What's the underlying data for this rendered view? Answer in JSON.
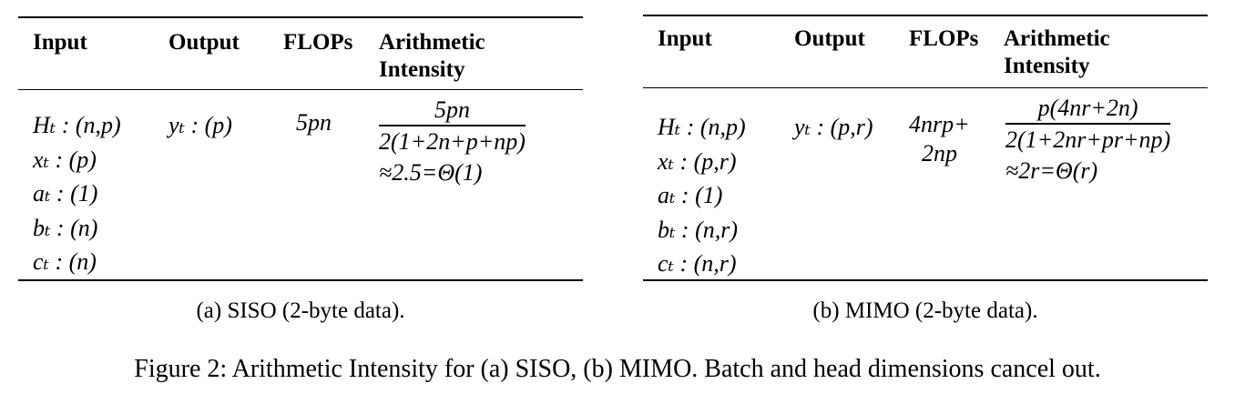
{
  "table_a": {
    "headers": {
      "input": "Input",
      "output": "Output",
      "flops": "FLOPs",
      "ai_line1": "Arithmetic",
      "ai_line2": "Intensity"
    },
    "inputs": [
      "Hₜ : (n,p)",
      "xₜ : (p)",
      "aₜ : (1)",
      "bₜ : (n)",
      "cₜ : (n)"
    ],
    "output": "yₜ : (p)",
    "flops": "5pn",
    "ai_numerator": "5pn",
    "ai_denominator": "2(1+2n+p+np)",
    "ai_approx": "≈2.5=Θ(1)",
    "caption": "(a) SISO (2-byte data)."
  },
  "table_b": {
    "headers": {
      "input": "Input",
      "output": "Output",
      "flops": "FLOPs",
      "ai_line1": "Arithmetic",
      "ai_line2": "Intensity"
    },
    "inputs": [
      "Hₜ : (n,p)",
      "xₜ : (p,r)",
      "aₜ : (1)",
      "bₜ : (n,r)",
      "cₜ : (n,r)"
    ],
    "output": "yₜ : (p,r)",
    "flops_line1": "4nrp+",
    "flops_line2": "2np",
    "ai_numerator": "p(4nr+2n)",
    "ai_denominator": "2(1+2nr+pr+np)",
    "ai_approx": "≈2r=Θ(r)",
    "caption": "(b) MIMO (2-byte data)."
  },
  "figure_caption": "Figure 2: Arithmetic Intensity for (a) SISO, (b) MIMO. Batch and head dimensions cancel out."
}
